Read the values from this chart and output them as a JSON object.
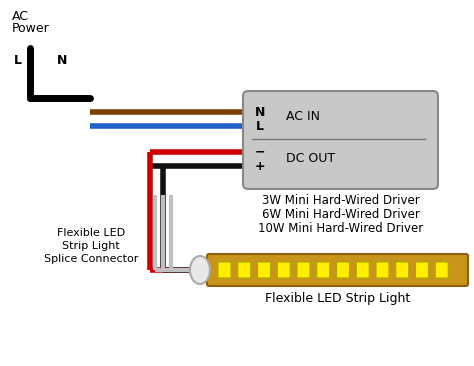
{
  "bg_color": "#ffffff",
  "ac_power_label": "AC\nPower",
  "L_label": "L",
  "N_label": "N",
  "driver_box_color": "#c8c8c8",
  "driver_box_edge": "#888888",
  "driver_labels": [
    "N",
    "L",
    "−",
    "+"
  ],
  "ac_in_label": "AC IN",
  "dc_out_label": "DC OUT",
  "driver_text": [
    "3W Mini Hard-Wired Driver",
    "6W Mini Hard-Wired Driver",
    "10W Mini Hard-Wired Driver"
  ],
  "splice_label": "Flexible LED\nStrip Light\nSplice Connector",
  "strip_label": "Flexible LED Strip Light",
  "wire_brown": "#7B3F00",
  "wire_blue": "#2060CC",
  "wire_red": "#CC0000",
  "wire_black": "#111111",
  "strip_body_color": "#C8941A",
  "strip_led_color": "#FFEE00",
  "connector_color": "#e8e8e8",
  "connector_edge": "#aaaaaa",
  "plug_color": "#f8f8f8",
  "plug_edge": "#333333"
}
